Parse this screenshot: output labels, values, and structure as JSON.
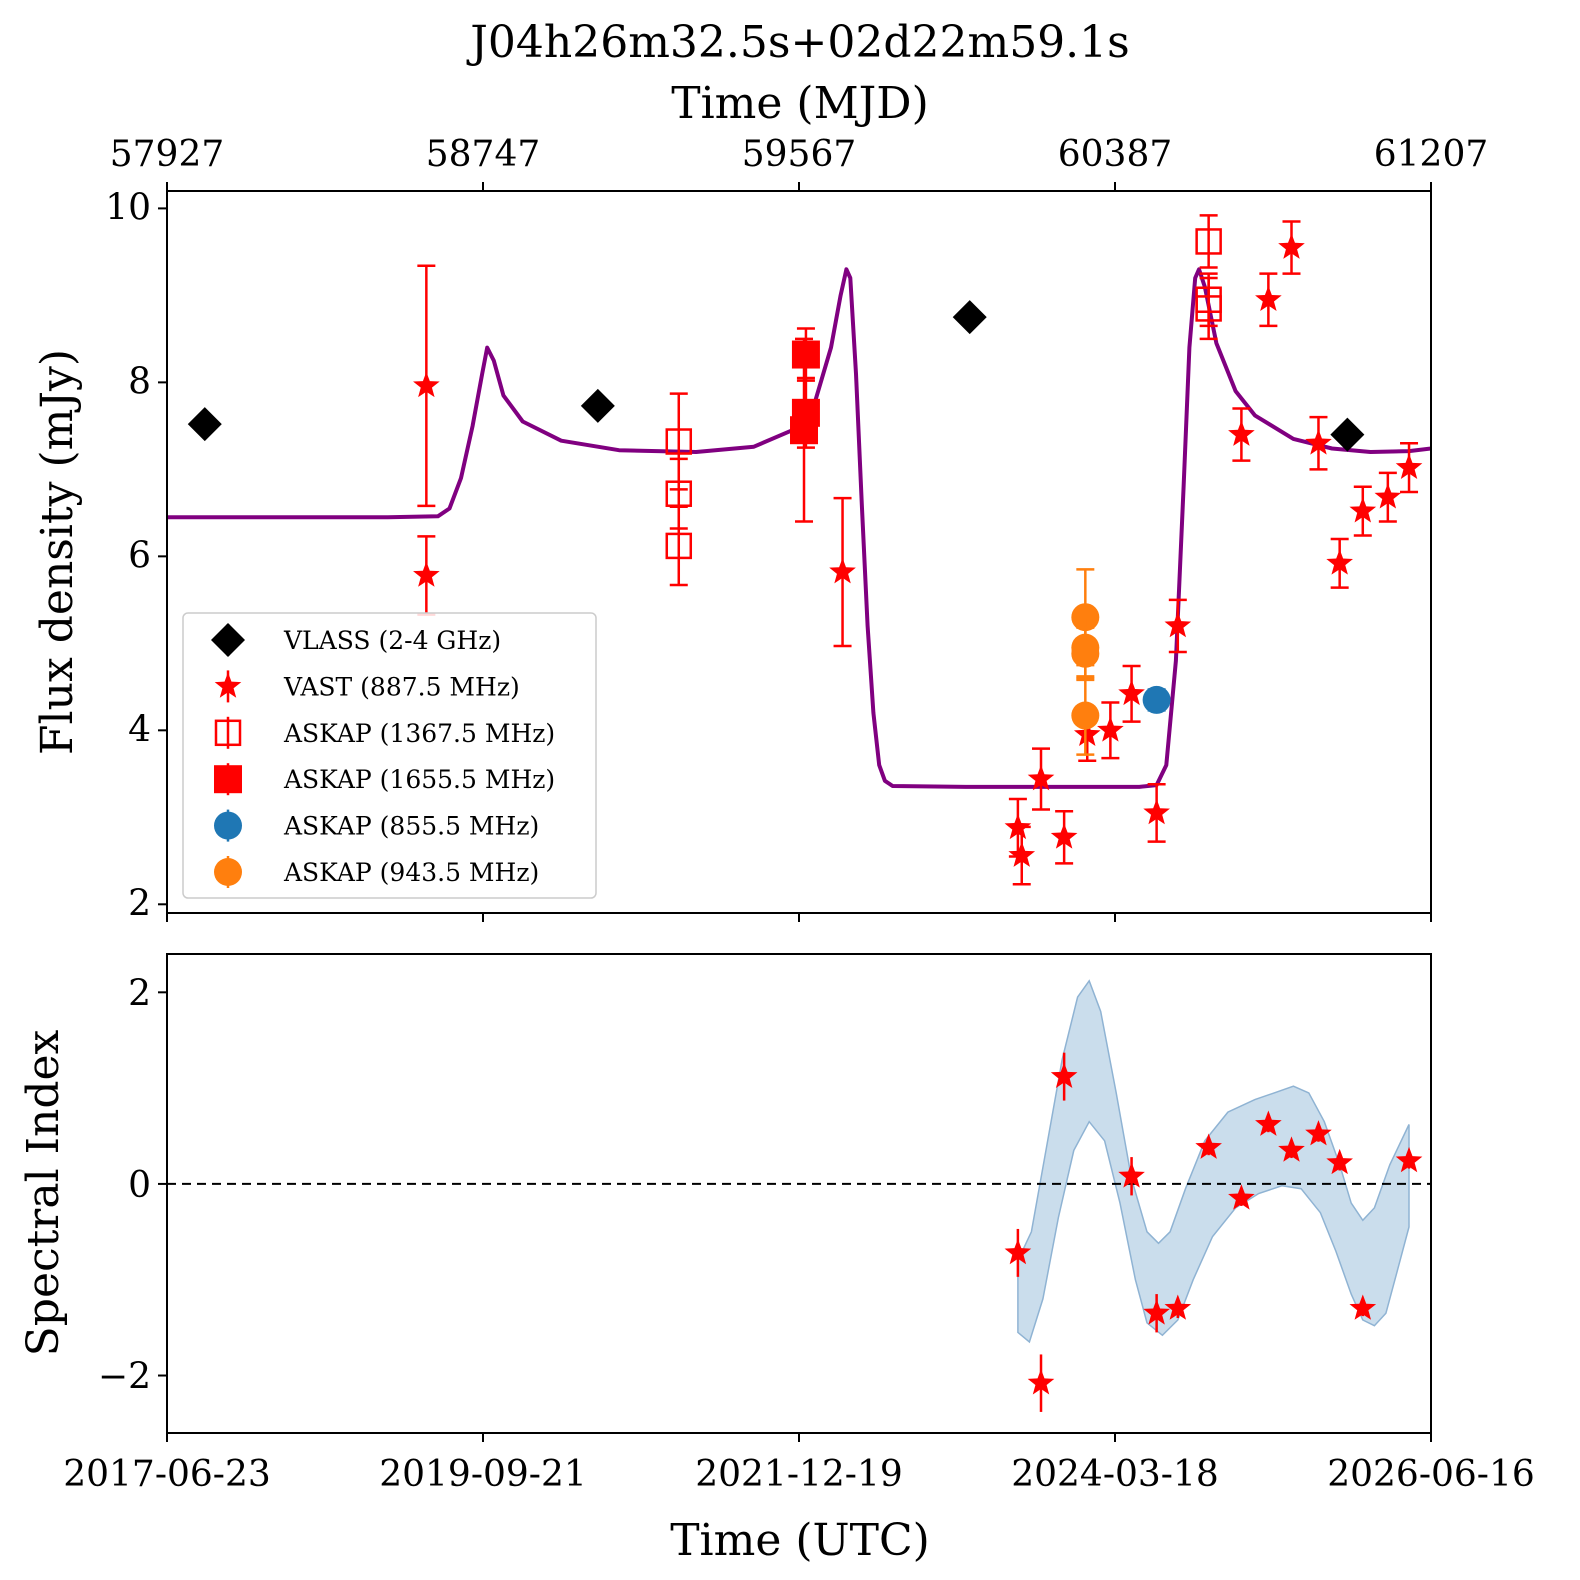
{
  "chart_data": [
    {
      "type": "scatter",
      "title": "J04h26m32.5s+02d22m59.1s",
      "xlabel_top": "Time (MJD)",
      "ylabel": "Flux density (mJy)",
      "xlim_mjd": [
        57927,
        61207
      ],
      "ylim": [
        1.9,
        10.2
      ],
      "top_ticks": [
        57927,
        58747,
        59567,
        60387,
        61207
      ],
      "y_ticks": [
        2,
        4,
        6,
        8,
        10
      ],
      "legend_position": "lower-left",
      "grid": false,
      "series": [
        {
          "name": "VLASS (2-4 GHz)",
          "marker": "diamond",
          "color": "#000000",
          "points": [
            {
              "x": 58025,
              "y": 7.52,
              "err": 0.05
            },
            {
              "x": 59045,
              "y": 7.73,
              "err": 0.05
            },
            {
              "x": 60010,
              "y": 8.75,
              "err": 0.05
            },
            {
              "x": 60990,
              "y": 7.4,
              "err": 0.05
            }
          ]
        },
        {
          "name": "VAST (887.5 MHz)",
          "marker": "star",
          "color": "#ff0000",
          "points": [
            {
              "x": 58600,
              "y": 7.96,
              "err": 1.38
            },
            {
              "x": 58600,
              "y": 5.78,
              "err": 0.45
            },
            {
              "x": 59680,
              "y": 5.82,
              "err": 0.85
            },
            {
              "x": 60135,
              "y": 2.88,
              "err": 0.33
            },
            {
              "x": 60145,
              "y": 2.56,
              "err": 0.33
            },
            {
              "x": 60195,
              "y": 3.44,
              "err": 0.35
            },
            {
              "x": 60255,
              "y": 2.77,
              "err": 0.3
            },
            {
              "x": 60315,
              "y": 3.95,
              "err": 0.3
            },
            {
              "x": 60375,
              "y": 4.0,
              "err": 0.32
            },
            {
              "x": 60430,
              "y": 4.42,
              "err": 0.32
            },
            {
              "x": 60495,
              "y": 3.05,
              "err": 0.33
            },
            {
              "x": 60550,
              "y": 5.2,
              "err": 0.3
            },
            {
              "x": 60715,
              "y": 7.4,
              "err": 0.3
            },
            {
              "x": 60785,
              "y": 8.95,
              "err": 0.3
            },
            {
              "x": 60845,
              "y": 9.55,
              "err": 0.3
            },
            {
              "x": 60915,
              "y": 7.3,
              "err": 0.3
            },
            {
              "x": 60970,
              "y": 5.92,
              "err": 0.28
            },
            {
              "x": 61030,
              "y": 6.52,
              "err": 0.28
            },
            {
              "x": 61095,
              "y": 6.68,
              "err": 0.28
            },
            {
              "x": 61150,
              "y": 7.02,
              "err": 0.28
            }
          ]
        },
        {
          "name": "ASKAP (1367.5 MHz)",
          "marker": "open-square",
          "color": "#ff0000",
          "points": [
            {
              "x": 59255,
              "y": 7.32,
              "err": 0.55
            },
            {
              "x": 59255,
              "y": 6.72,
              "err": 0.4
            },
            {
              "x": 59255,
              "y": 6.12,
              "err": 0.45
            },
            {
              "x": 60630,
              "y": 9.62,
              "err": 0.3
            },
            {
              "x": 60630,
              "y": 8.95,
              "err": 0.3
            },
            {
              "x": 60630,
              "y": 8.85,
              "err": 0.35
            }
          ]
        },
        {
          "name": "ASKAP (1655.5 MHz)",
          "marker": "square",
          "color": "#ff0000",
          "points": [
            {
              "x": 59585,
              "y": 8.32,
              "err": 0.3
            },
            {
              "x": 59585,
              "y": 7.65,
              "err": 0.4
            },
            {
              "x": 59580,
              "y": 7.45,
              "err": 1.05
            }
          ]
        },
        {
          "name": "ASKAP (855.5 MHz)",
          "marker": "circle",
          "color": "#1f77b4",
          "points": [
            {
              "x": 60495,
              "y": 4.35,
              "err": 0.12
            }
          ]
        },
        {
          "name": "ASKAP (943.5 MHz)",
          "marker": "circle",
          "color": "#ff7f0e",
          "points": [
            {
              "x": 60310,
              "y": 5.3,
              "err": 0.55
            },
            {
              "x": 60310,
              "y": 4.95,
              "err": 0.35
            },
            {
              "x": 60310,
              "y": 4.88,
              "err": 0.3
            },
            {
              "x": 60310,
              "y": 4.17,
              "err": 0.45
            }
          ]
        }
      ],
      "model_curve": {
        "color": "#800080",
        "points": [
          [
            57927,
            6.45
          ],
          [
            58500,
            6.45
          ],
          [
            58630,
            6.46
          ],
          [
            58660,
            6.55
          ],
          [
            58690,
            6.9
          ],
          [
            58720,
            7.5
          ],
          [
            58745,
            8.1
          ],
          [
            58758,
            8.4
          ],
          [
            58775,
            8.25
          ],
          [
            58800,
            7.85
          ],
          [
            58850,
            7.55
          ],
          [
            58950,
            7.33
          ],
          [
            59100,
            7.22
          ],
          [
            59300,
            7.2
          ],
          [
            59450,
            7.26
          ],
          [
            59550,
            7.45
          ],
          [
            59610,
            7.8
          ],
          [
            59650,
            8.4
          ],
          [
            59675,
            9.0
          ],
          [
            59690,
            9.3
          ],
          [
            59700,
            9.2
          ],
          [
            59715,
            8.1
          ],
          [
            59730,
            6.6
          ],
          [
            59745,
            5.2
          ],
          [
            59760,
            4.2
          ],
          [
            59775,
            3.6
          ],
          [
            59790,
            3.42
          ],
          [
            59810,
            3.36
          ],
          [
            60000,
            3.35
          ],
          [
            60200,
            3.35
          ],
          [
            60450,
            3.35
          ],
          [
            60495,
            3.37
          ],
          [
            60520,
            3.6
          ],
          [
            60545,
            4.8
          ],
          [
            60565,
            6.8
          ],
          [
            60580,
            8.4
          ],
          [
            60595,
            9.2
          ],
          [
            60605,
            9.3
          ],
          [
            60620,
            9.1
          ],
          [
            60650,
            8.45
          ],
          [
            60700,
            7.9
          ],
          [
            60750,
            7.62
          ],
          [
            60850,
            7.35
          ],
          [
            60950,
            7.24
          ],
          [
            61050,
            7.2
          ],
          [
            61150,
            7.21
          ],
          [
            61207,
            7.24
          ]
        ]
      }
    },
    {
      "type": "scatter",
      "ylabel": "Spectral Index",
      "xlabel": "Time (UTC)",
      "xlim_mjd": [
        57927,
        61207
      ],
      "ylim": [
        -2.6,
        2.4
      ],
      "x_ticks": [
        "2017-06-23",
        "2019-09-21",
        "2021-12-19",
        "2024-03-18",
        "2026-06-16"
      ],
      "y_ticks": [
        2,
        0,
        -2
      ],
      "y_tick_labels": [
        "2",
        "0",
        "−2"
      ],
      "reference_line": 0,
      "series": [
        {
          "name": "spectral index",
          "marker": "star",
          "color": "#ff0000",
          "points": [
            {
              "x": 60135,
              "y": -0.72,
              "err": 0.25
            },
            {
              "x": 60195,
              "y": -2.08,
              "err": 0.3
            },
            {
              "x": 60255,
              "y": 1.12,
              "err": 0.25
            },
            {
              "x": 60430,
              "y": 0.08,
              "err": 0.2
            },
            {
              "x": 60495,
              "y": -1.35,
              "err": 0.2
            },
            {
              "x": 60550,
              "y": -1.3,
              "err": 0.1
            },
            {
              "x": 60630,
              "y": 0.38,
              "err": 0.08
            },
            {
              "x": 60715,
              "y": -0.15,
              "err": 0.08
            },
            {
              "x": 60785,
              "y": 0.62,
              "err": 0.08
            },
            {
              "x": 60845,
              "y": 0.35,
              "err": 0.08
            },
            {
              "x": 60915,
              "y": 0.52,
              "err": 0.08
            },
            {
              "x": 60970,
              "y": 0.22,
              "err": 0.08
            },
            {
              "x": 61030,
              "y": -1.3,
              "err": 0.08
            },
            {
              "x": 61150,
              "y": 0.24,
              "err": 0.08
            }
          ]
        }
      ],
      "confidence_band": {
        "color": "#b8d2e6",
        "edge_color": "#8fb3d3",
        "upper": [
          [
            60135,
            -0.8
          ],
          [
            60170,
            -0.5
          ],
          [
            60210,
            0.4
          ],
          [
            60250,
            1.3
          ],
          [
            60290,
            1.95
          ],
          [
            60320,
            2.12
          ],
          [
            60350,
            1.8
          ],
          [
            60390,
            0.95
          ],
          [
            60430,
            0.05
          ],
          [
            60470,
            -0.5
          ],
          [
            60500,
            -0.62
          ],
          [
            60530,
            -0.5
          ],
          [
            60570,
            -0.05
          ],
          [
            60620,
            0.45
          ],
          [
            60680,
            0.75
          ],
          [
            60750,
            0.88
          ],
          [
            60800,
            0.95
          ],
          [
            60850,
            1.02
          ],
          [
            60890,
            0.95
          ],
          [
            60930,
            0.65
          ],
          [
            60970,
            0.2
          ],
          [
            61000,
            -0.2
          ],
          [
            61030,
            -0.38
          ],
          [
            61060,
            -0.25
          ],
          [
            61100,
            0.2
          ],
          [
            61150,
            0.62
          ]
        ],
        "lower": [
          [
            61150,
            -0.45
          ],
          [
            61120,
            -0.9
          ],
          [
            61090,
            -1.35
          ],
          [
            61060,
            -1.48
          ],
          [
            61030,
            -1.42
          ],
          [
            61000,
            -1.15
          ],
          [
            60960,
            -0.7
          ],
          [
            60920,
            -0.3
          ],
          [
            60870,
            -0.05
          ],
          [
            60820,
            -0.02
          ],
          [
            60760,
            -0.1
          ],
          [
            60700,
            -0.25
          ],
          [
            60640,
            -0.55
          ],
          [
            60590,
            -1.0
          ],
          [
            60550,
            -1.42
          ],
          [
            60510,
            -1.58
          ],
          [
            60470,
            -1.45
          ],
          [
            60440,
            -1.0
          ],
          [
            60400,
            -0.2
          ],
          [
            60360,
            0.45
          ],
          [
            60320,
            0.65
          ],
          [
            60280,
            0.35
          ],
          [
            60240,
            -0.35
          ],
          [
            60200,
            -1.2
          ],
          [
            60165,
            -1.65
          ],
          [
            60135,
            -1.55
          ]
        ]
      }
    }
  ]
}
